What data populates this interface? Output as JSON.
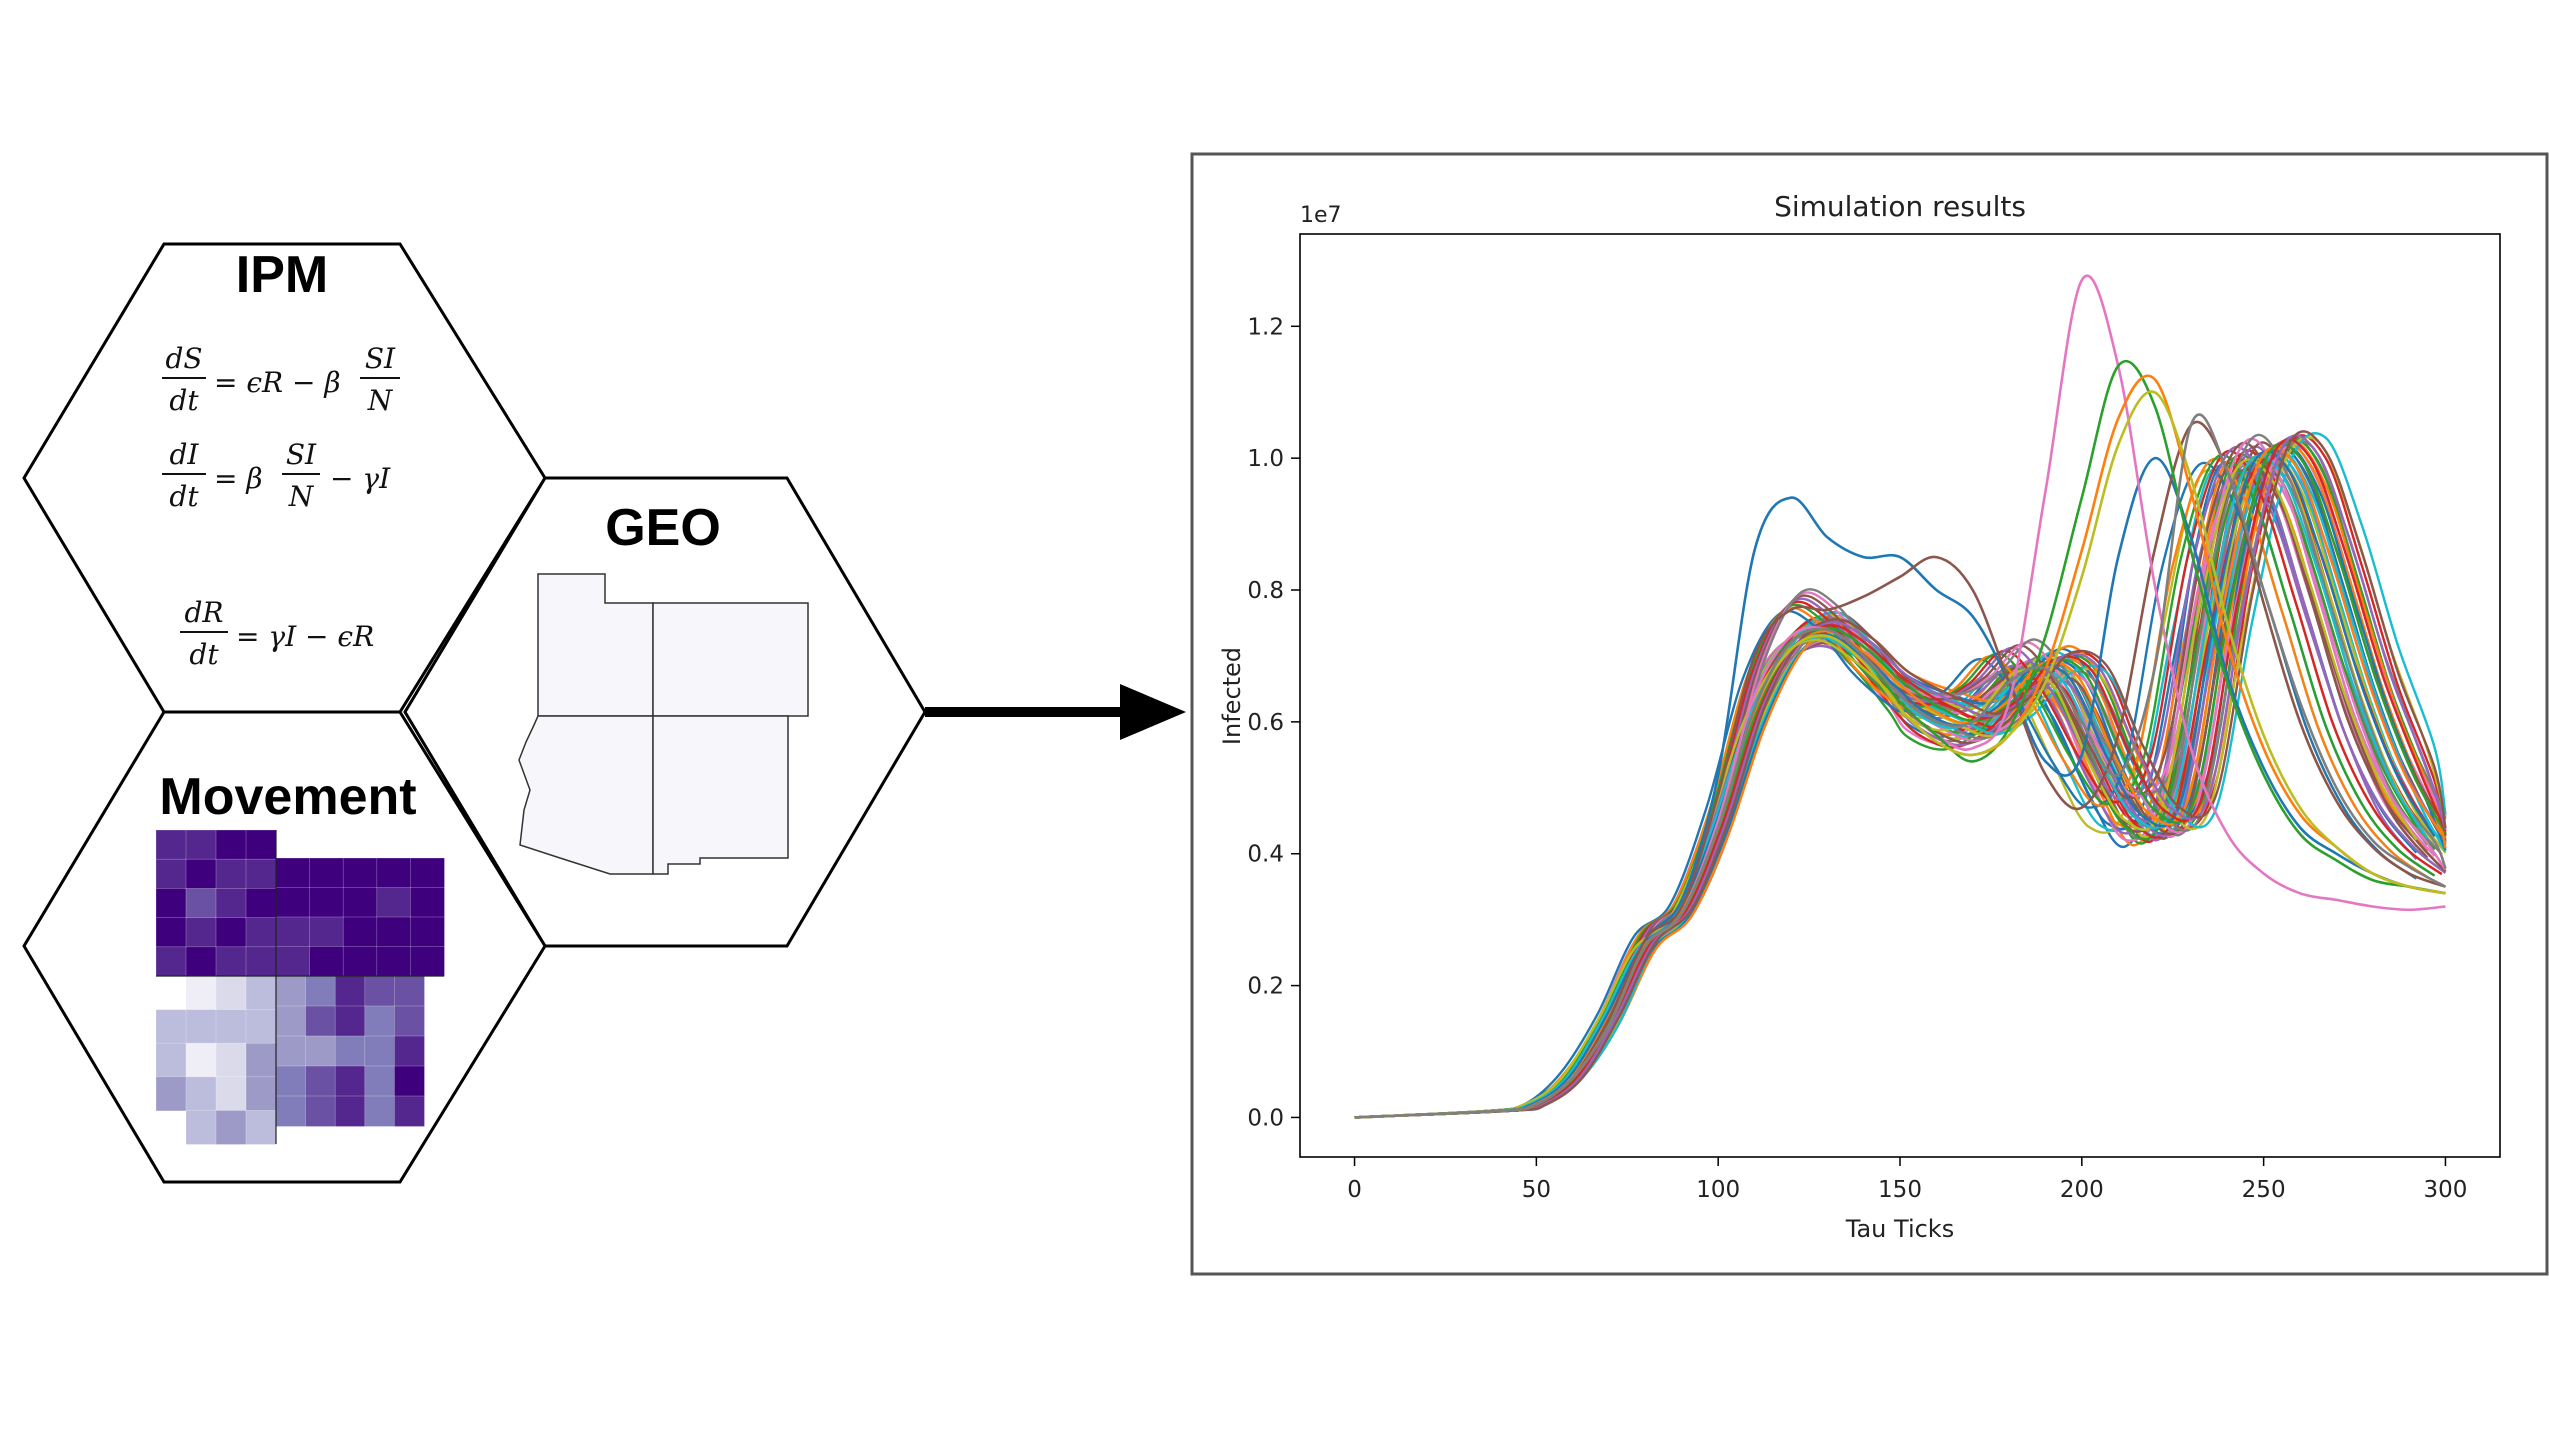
{
  "hexagons": {
    "ipm": {
      "label": "IPM",
      "equations": [
        {
          "lhs_num": "dS",
          "lhs_den": "dt",
          "rhs_a": "= ϵR − β",
          "frac_num": "SI",
          "frac_den": "N",
          "rhs_b": ""
        },
        {
          "lhs_num": "dI",
          "lhs_den": "dt",
          "rhs_a": "= β",
          "frac_num": "SI",
          "frac_den": "N",
          "rhs_b": "− γI"
        },
        {
          "lhs_num": "dR",
          "lhs_den": "dt",
          "rhs_a": "= γI − ϵR",
          "frac_num": "",
          "frac_den": "",
          "rhs_b": ""
        }
      ]
    },
    "geo": {
      "label": "GEO"
    },
    "movement": {
      "label": "Movement",
      "colors": [
        "#3f007d",
        "#54278f",
        "#6a51a3",
        "#807dba",
        "#9e9ac8",
        "#bcbddc",
        "#dadaeb",
        "#efedf5"
      ]
    }
  },
  "chart_data": {
    "type": "line",
    "title": "Simulation results",
    "xlabel": "Tau Ticks",
    "ylabel": "Infected",
    "y_multiplier_label": "1e7",
    "xlim": [
      -15,
      315
    ],
    "ylim": [
      -0.06,
      1.34
    ],
    "xticks": [
      0,
      50,
      100,
      150,
      200,
      250,
      300
    ],
    "xtick_labels": [
      "0",
      "50",
      "100",
      "150",
      "200",
      "250",
      "300"
    ],
    "yticks": [
      0.0,
      0.2,
      0.4,
      0.6,
      0.8,
      1.0,
      1.2
    ],
    "ytick_labels": [
      "0.0",
      "0.2",
      "0.4",
      "0.6",
      "0.8",
      "1.0",
      "1.2"
    ],
    "grid": false,
    "legend": "none",
    "series_style": "about 50 simulation runs, matplotlib tab10 colour cycle",
    "palette": [
      "#1f77b4",
      "#ff7f0e",
      "#2ca02c",
      "#d62728",
      "#9467bd",
      "#8c564b",
      "#e377c2",
      "#7f7f7f",
      "#bcbd22",
      "#17becf"
    ],
    "x": [
      0,
      40,
      50,
      60,
      70,
      80,
      90,
      100,
      110,
      120,
      130,
      140,
      150,
      160,
      170,
      180,
      190,
      200,
      210,
      220,
      230,
      240,
      250,
      260,
      270,
      280,
      290,
      300
    ],
    "series": [
      {
        "values": [
          0,
          0.01,
          0.02,
          0.06,
          0.14,
          0.25,
          0.3,
          0.42,
          0.6,
          0.7,
          0.74,
          0.71,
          0.65,
          0.61,
          0.59,
          0.63,
          0.68,
          0.62,
          0.5,
          0.42,
          0.55,
          0.9,
          1.01,
          0.95,
          0.78,
          0.6,
          0.48,
          0.41
        ]
      },
      {
        "values": [
          0,
          0.01,
          0.02,
          0.06,
          0.14,
          0.26,
          0.31,
          0.44,
          0.62,
          0.72,
          0.75,
          0.71,
          0.65,
          0.62,
          0.63,
          0.68,
          0.66,
          0.55,
          0.45,
          0.48,
          0.75,
          0.99,
          0.95,
          0.78,
          0.6,
          0.48,
          0.41,
          0.37
        ]
      },
      {
        "values": [
          0,
          0.01,
          0.02,
          0.06,
          0.15,
          0.27,
          0.32,
          0.46,
          0.64,
          0.73,
          0.74,
          0.7,
          0.64,
          0.6,
          0.58,
          0.62,
          0.69,
          0.66,
          0.53,
          0.43,
          0.5,
          0.82,
          1.0,
          0.98,
          0.82,
          0.64,
          0.5,
          0.42
        ]
      },
      {
        "values": [
          0,
          0.01,
          0.02,
          0.06,
          0.14,
          0.25,
          0.3,
          0.42,
          0.58,
          0.69,
          0.73,
          0.71,
          0.66,
          0.63,
          0.62,
          0.66,
          0.7,
          0.64,
          0.52,
          0.44,
          0.52,
          0.86,
          1.0,
          0.94,
          0.77,
          0.6,
          0.47,
          0.4
        ]
      },
      {
        "values": [
          0,
          0.01,
          0.02,
          0.06,
          0.14,
          0.26,
          0.31,
          0.45,
          0.62,
          0.72,
          0.75,
          0.7,
          0.63,
          0.59,
          0.57,
          0.6,
          0.66,
          0.66,
          0.55,
          0.45,
          0.46,
          0.74,
          0.97,
          1.01,
          0.88,
          0.7,
          0.55,
          0.45
        ]
      },
      {
        "values": [
          0,
          0.01,
          0.02,
          0.07,
          0.16,
          0.28,
          0.33,
          0.48,
          0.68,
          0.78,
          0.76,
          0.69,
          0.64,
          0.63,
          0.66,
          0.71,
          0.65,
          0.55,
          0.48,
          0.55,
          0.85,
          1.01,
          0.95,
          0.78,
          0.6,
          0.48,
          0.41,
          0.37
        ]
      },
      {
        "values": [
          0,
          0.01,
          0.02,
          0.06,
          0.15,
          0.26,
          0.31,
          0.44,
          0.61,
          0.71,
          0.74,
          0.71,
          0.66,
          0.62,
          0.6,
          0.63,
          0.69,
          0.67,
          0.55,
          0.46,
          0.48,
          0.78,
          1.0,
          0.99,
          0.84,
          0.66,
          0.52,
          0.43
        ]
      }
    ],
    "highlighted_series": [
      {
        "name_color": "#1f77b4",
        "values": [
          0,
          0.01,
          0.02,
          0.06,
          0.15,
          0.27,
          0.33,
          0.52,
          0.86,
          0.94,
          0.88,
          0.85,
          0.85,
          0.8,
          0.76,
          0.66,
          0.54,
          0.55,
          0.85,
          1.0,
          0.88,
          0.67,
          0.53,
          0.44,
          0.4,
          0.37,
          0.35,
          0.34
        ]
      },
      {
        "name_color": "#8c564b",
        "values": [
          0,
          0.01,
          0.02,
          0.06,
          0.15,
          0.27,
          0.32,
          0.49,
          0.7,
          0.77,
          0.77,
          0.79,
          0.82,
          0.85,
          0.8,
          0.66,
          0.52,
          0.47,
          0.58,
          0.86,
          1.05,
          0.98,
          0.78,
          0.6,
          0.48,
          0.41,
          0.37,
          0.35
        ]
      },
      {
        "name_color": "#e377c2",
        "values": [
          0,
          0.01,
          0.02,
          0.06,
          0.14,
          0.26,
          0.31,
          0.45,
          0.64,
          0.73,
          0.74,
          0.7,
          0.63,
          0.58,
          0.56,
          0.63,
          0.95,
          1.27,
          1.14,
          0.81,
          0.56,
          0.43,
          0.37,
          0.34,
          0.33,
          0.32,
          0.315,
          0.32
        ]
      },
      {
        "name_color": "#2ca02c",
        "values": [
          0,
          0.01,
          0.02,
          0.06,
          0.14,
          0.26,
          0.31,
          0.44,
          0.62,
          0.72,
          0.74,
          0.7,
          0.63,
          0.58,
          0.54,
          0.59,
          0.73,
          0.94,
          1.14,
          1.08,
          0.86,
          0.66,
          0.52,
          0.43,
          0.39,
          0.36,
          0.35,
          0.34
        ]
      },
      {
        "name_color": "#ff7f0e",
        "values": [
          0,
          0.01,
          0.02,
          0.06,
          0.14,
          0.26,
          0.31,
          0.44,
          0.62,
          0.71,
          0.73,
          0.69,
          0.62,
          0.57,
          0.55,
          0.58,
          0.68,
          0.86,
          1.06,
          1.12,
          0.95,
          0.72,
          0.56,
          0.46,
          0.41,
          0.37,
          0.35,
          0.34
        ]
      },
      {
        "name_color": "#bcbd22",
        "values": [
          0,
          0.01,
          0.02,
          0.06,
          0.14,
          0.26,
          0.31,
          0.44,
          0.62,
          0.71,
          0.73,
          0.69,
          0.62,
          0.57,
          0.55,
          0.58,
          0.66,
          0.82,
          1.02,
          1.1,
          0.97,
          0.75,
          0.58,
          0.47,
          0.41,
          0.37,
          0.35,
          0.34
        ]
      },
      {
        "name_color": "#7f7f7f",
        "values": [
          0,
          0.01,
          0.02,
          0.06,
          0.14,
          0.26,
          0.31,
          0.44,
          0.62,
          0.72,
          0.74,
          0.7,
          0.64,
          0.6,
          0.6,
          0.66,
          0.68,
          0.6,
          0.52,
          0.68,
          1.05,
          0.98,
          0.8,
          0.63,
          0.5,
          0.42,
          0.38,
          0.35
        ]
      }
    ]
  }
}
